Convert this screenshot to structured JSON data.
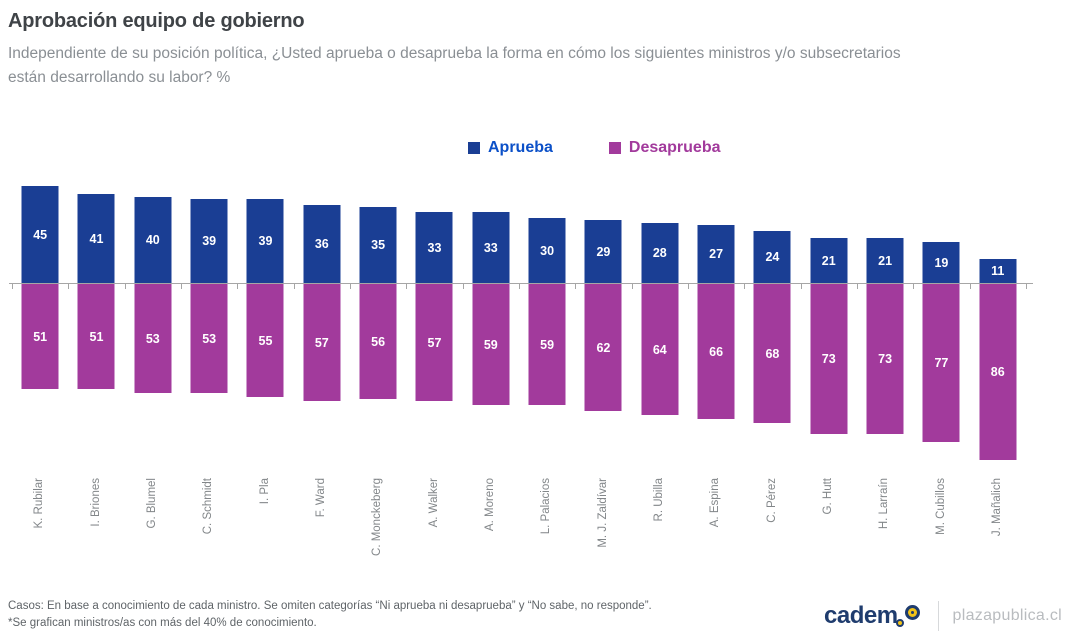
{
  "header": {
    "title": "Aprobación equipo de gobierno",
    "subtitle_line1": "Independiente de su posición política, ¿Usted aprueba o desaprueba la forma en cómo los siguientes ministros y/o subsecretarios",
    "subtitle_line2": "están desarrollando su labor? %"
  },
  "legend": {
    "aprueba_label": "Aprueba",
    "desaprueba_label": "Desaprueba"
  },
  "colors": {
    "aprueba_bar": "#1a3e94",
    "desaprueba_bar": "#a23a9c",
    "aprueba_legend_text": "#0b50c8",
    "desaprueba_legend_text": "#a23a9c",
    "axis": "#a6a6a6"
  },
  "chart_data": {
    "type": "bar",
    "subtype": "diverging-vertical",
    "title": "Aprobación equipo de gobierno",
    "xlabel": "",
    "ylabel": "%",
    "grid": false,
    "legend_position": "top-center",
    "value_labels": "inside-white-bold",
    "categories": [
      "K. Rubilar",
      "I. Briones",
      "G. Blumel",
      "C. Schmidt",
      "I. Pla",
      "F. Ward",
      "C. Monckeberg",
      "A. Walker",
      "A. Moreno",
      "L. Palacios",
      "M. J. Zaldívar",
      "R. Ubilla",
      "A. Espina",
      "C. Pérez",
      "G. Hutt",
      "H. Larraín",
      "M. Cubillos",
      "J. Mañalich"
    ],
    "series": [
      {
        "name": "Aprueba",
        "direction": "up",
        "color": "#1a3e94",
        "values": [
          45,
          41,
          40,
          39,
          39,
          36,
          35,
          33,
          33,
          30,
          29,
          28,
          27,
          24,
          21,
          21,
          19,
          11
        ]
      },
      {
        "name": "Desaprueba",
        "direction": "down",
        "color": "#a23a9c",
        "values": [
          51,
          51,
          53,
          53,
          55,
          57,
          56,
          57,
          59,
          59,
          62,
          64,
          66,
          68,
          73,
          73,
          77,
          86
        ]
      }
    ]
  },
  "footer": {
    "line1": "Casos: En base a conocimiento de cada ministro. Se omiten categorías “Ni aprueba ni desaprueba” y “No sabe, no responde”.",
    "line2": "*Se grafican ministros/as con más del 40% de conocimiento.",
    "brand": "cadem",
    "site": "plazapublica.cl"
  }
}
